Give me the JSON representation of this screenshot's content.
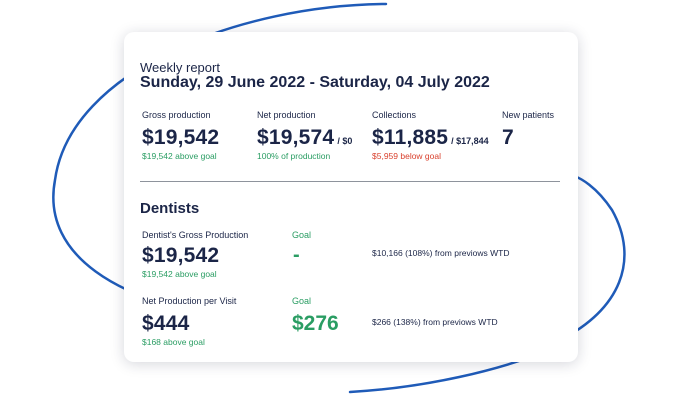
{
  "report": {
    "label": "Weekly report",
    "date_range": "Sunday, 29 June 2022 - Saturday, 04 July 2022"
  },
  "metrics": [
    {
      "label": "Gross production",
      "value": "$19,542",
      "suffix": "",
      "note": "$19,542 above goal",
      "note_tone": "positive"
    },
    {
      "label": "Net production",
      "value": "$19,574",
      "suffix": "/ $0",
      "note": "100% of production",
      "note_tone": "positive"
    },
    {
      "label": "Collections",
      "value": "$11,885",
      "suffix": "/ $17,844",
      "note": "$5,959 below goal",
      "note_tone": "negative"
    },
    {
      "label": "New patients",
      "value": "7",
      "suffix": "",
      "note": "",
      "note_tone": ""
    }
  ],
  "dentists": {
    "title": "Dentists",
    "rows": [
      {
        "label": "Dentist's Gross Production",
        "value": "$19,542",
        "note": "$19,542 above goal",
        "goal_label": "Goal",
        "goal_value": "-",
        "comparison": "$10,166 (108%) from previows WTD"
      },
      {
        "label": "Net Production per Visit",
        "value": "$444",
        "note": "$168 above goal",
        "goal_label": "Goal",
        "goal_value": "$276",
        "comparison": "$266 (138%) from previows WTD"
      }
    ]
  },
  "colors": {
    "brand_blue": "#1f5bb8",
    "text_navy": "#1b2547",
    "positive_green": "#2a9d63",
    "negative_red": "#d9412e"
  }
}
